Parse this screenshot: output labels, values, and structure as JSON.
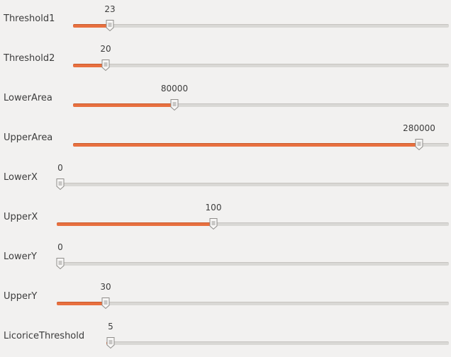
{
  "sliders": [
    {
      "label": "Threshold1",
      "value": "23",
      "fraction": 0.098
    },
    {
      "label": "Threshold2",
      "value": "20",
      "fraction": 0.085
    },
    {
      "label": "LowerArea",
      "value": "80000",
      "fraction": 0.27
    },
    {
      "label": "UpperArea",
      "value": "280000",
      "fraction": 0.92
    },
    {
      "label": "LowerX",
      "value": "0",
      "fraction": 0.0
    },
    {
      "label": "UpperX",
      "value": "100",
      "fraction": 0.4
    },
    {
      "label": "LowerY",
      "value": "0",
      "fraction": 0.0
    },
    {
      "label": "UpperY",
      "value": "30",
      "fraction": 0.12
    },
    {
      "label": "LicoriceThreshold",
      "value": "5",
      "fraction": 0.01
    }
  ],
  "colors": {
    "accent": "#e8703f",
    "track": "#d9d8d5",
    "background": "#f2f1f0"
  },
  "icons": {
    "knob": "slider-knob-icon"
  }
}
